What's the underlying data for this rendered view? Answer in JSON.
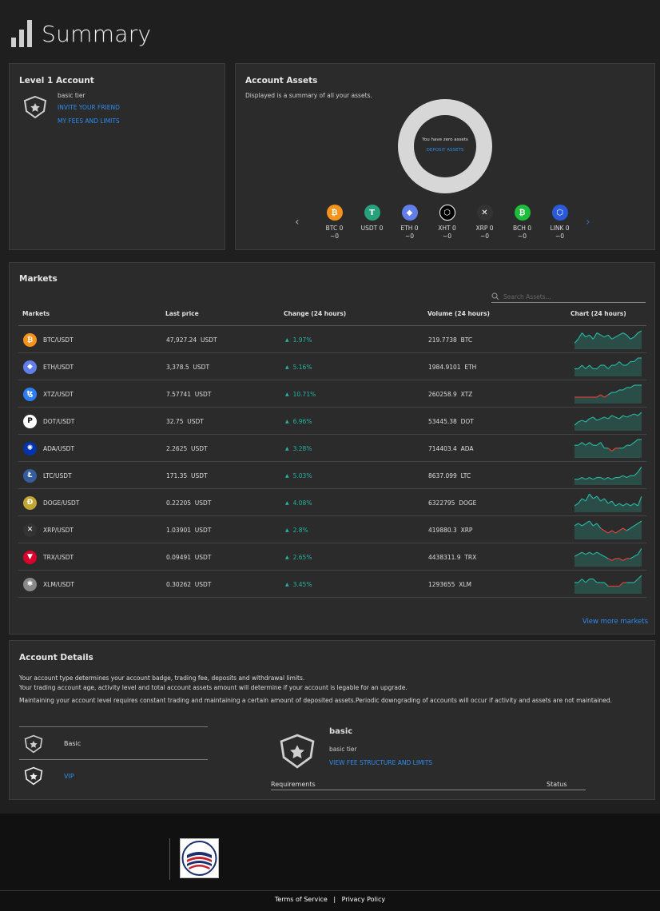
{
  "page_title": "Summary",
  "level_panel": {
    "title": "Level 1 Account",
    "tier": "basic tier",
    "invite_link": "INVITE YOUR FRIEND",
    "fees_link": "MY FEES AND LIMITS"
  },
  "assets_panel": {
    "title": "Account Assets",
    "subtitle": "Displayed is a summary of all your assets.",
    "zero_text": "You have zero assets",
    "deposit_link": "DEPOSIT ASSETS",
    "coins": [
      {
        "symbol": "BTC",
        "label": "BTC 0",
        "value": "~0",
        "color": "#f7931a",
        "glyph": "₿"
      },
      {
        "symbol": "USDT",
        "label": "USDT 0",
        "value": "",
        "color": "#26a17b",
        "glyph": "T"
      },
      {
        "symbol": "ETH",
        "label": "ETH 0",
        "value": "~0",
        "color": "#627eea",
        "glyph": "◆"
      },
      {
        "symbol": "XHT",
        "label": "XHT 0",
        "value": "~0",
        "color": "#000000",
        "glyph": "⬡"
      },
      {
        "symbol": "XRP",
        "label": "XRP 0",
        "value": "~0",
        "color": "#333333",
        "glyph": "✕"
      },
      {
        "symbol": "BCH",
        "label": "BCH 0",
        "value": "~0",
        "color": "#1dbd3c",
        "glyph": "₿"
      },
      {
        "symbol": "LINK",
        "label": "LINK 0",
        "value": "~0",
        "color": "#2a5ada",
        "glyph": "⬡"
      }
    ]
  },
  "markets": {
    "title": "Markets",
    "search_placeholder": "Search Assets...",
    "headers": [
      "Markets",
      "Last price",
      "Change (24 hours)",
      "Volume (24 hours)",
      "Chart (24 hours)"
    ],
    "view_more": "View more markets",
    "rows": [
      {
        "pair": "BTC/USDT",
        "price": "47,927.24",
        "quote": "USDT",
        "change": "1.97%",
        "volume": "219.7738",
        "base": "BTC",
        "color": "#f7931a",
        "glyph": "₿",
        "spark": [
          4,
          6,
          9,
          7,
          8,
          6,
          9,
          8,
          7,
          8,
          6,
          7,
          8,
          9,
          8,
          6,
          7,
          9,
          10
        ],
        "red": []
      },
      {
        "pair": "ETH/USDT",
        "price": "3,378.5",
        "quote": "USDT",
        "change": "5.16%",
        "volume": "1984.9101",
        "base": "ETH",
        "color": "#627eea",
        "glyph": "◆",
        "spark": [
          4,
          4,
          5,
          4,
          5,
          4,
          4,
          5,
          5,
          4,
          5,
          5,
          6,
          5,
          5,
          6,
          6,
          7,
          7
        ],
        "red": []
      },
      {
        "pair": "XTZ/USDT",
        "price": "7.57741",
        "quote": "USDT",
        "change": "10.71%",
        "volume": "260258.9",
        "base": "XTZ",
        "color": "#2c7df7",
        "glyph": "ꜩ",
        "spark": [
          3,
          3,
          3,
          3,
          3,
          3,
          3,
          4,
          3,
          4,
          5,
          5,
          6,
          6,
          7,
          7,
          8,
          8,
          8
        ],
        "red": [
          0,
          1,
          2,
          3,
          4,
          5,
          6,
          7,
          8
        ]
      },
      {
        "pair": "DOT/USDT",
        "price": "32.75",
        "quote": "USDT",
        "change": "6.96%",
        "volume": "53445.38",
        "base": "DOT",
        "color": "#ffffff",
        "glyph": "P",
        "spark": [
          3,
          5,
          6,
          5,
          7,
          8,
          6,
          7,
          8,
          7,
          9,
          8,
          7,
          9,
          8,
          9,
          10,
          9,
          11
        ],
        "red": []
      },
      {
        "pair": "ADA/USDT",
        "price": "2.2625",
        "quote": "USDT",
        "change": "3.28%",
        "volume": "714403.4",
        "base": "ADA",
        "color": "#0033ad",
        "glyph": "✺",
        "spark": [
          6,
          6,
          7,
          6,
          7,
          6,
          6,
          7,
          5,
          5,
          4,
          5,
          5,
          5,
          6,
          6,
          7,
          8,
          8
        ],
        "red": [
          9,
          10,
          11
        ]
      },
      {
        "pair": "LTC/USDT",
        "price": "171.35",
        "quote": "USDT",
        "change": "5.03%",
        "volume": "8637.099",
        "base": "LTC",
        "color": "#345d9d",
        "glyph": "Ł",
        "spark": [
          4,
          4,
          5,
          4,
          5,
          4,
          5,
          5,
          4,
          5,
          4,
          5,
          5,
          6,
          5,
          6,
          6,
          8,
          11
        ],
        "red": []
      },
      {
        "pair": "DOGE/USDT",
        "price": "0.22205",
        "quote": "USDT",
        "change": "4.08%",
        "volume": "6322795",
        "base": "DOGE",
        "color": "#c2a633",
        "glyph": "Ð",
        "spark": [
          5,
          6,
          8,
          7,
          10,
          8,
          9,
          7,
          8,
          6,
          7,
          5,
          6,
          5,
          6,
          5,
          6,
          5,
          9
        ],
        "red": []
      },
      {
        "pair": "XRP/USDT",
        "price": "1.03901",
        "quote": "USDT",
        "change": "2.8%",
        "volume": "419880.3",
        "base": "XRP",
        "color": "#333333",
        "glyph": "✕",
        "spark": [
          8,
          9,
          8,
          9,
          10,
          8,
          9,
          7,
          6,
          5,
          6,
          5,
          6,
          7,
          6,
          7,
          8,
          9,
          10
        ],
        "red": [
          7,
          8,
          9,
          10,
          11,
          12,
          13
        ]
      },
      {
        "pair": "TRX/USDT",
        "price": "0.09491",
        "quote": "USDT",
        "change": "2.65%",
        "volume": "4438311.9",
        "base": "TRX",
        "color": "#d9012c",
        "glyph": "▼",
        "spark": [
          7,
          8,
          9,
          8,
          9,
          8,
          9,
          8,
          7,
          6,
          5,
          6,
          6,
          5,
          6,
          6,
          7,
          8,
          11
        ],
        "red": [
          9,
          10,
          11,
          12,
          13,
          14
        ]
      },
      {
        "pair": "XLM/USDT",
        "price": "0.30262",
        "quote": "USDT",
        "change": "3.45%",
        "volume": "1293655",
        "base": "XLM",
        "color": "#888888",
        "glyph": "✱",
        "spark": [
          6,
          6,
          7,
          6,
          7,
          7,
          6,
          6,
          6,
          5,
          5,
          5,
          5,
          6,
          6,
          6,
          6,
          7,
          8
        ],
        "red": [
          9,
          10,
          11,
          12,
          13
        ]
      }
    ]
  },
  "account_details": {
    "title": "Account Details",
    "para1": "Your account type determines your account badge, trading fee, deposits and withdrawal limits.",
    "para2": "Your trading account age, activity level and total account assets amount will determine if your account is legable for an upgrade.",
    "para3": "Maintaining your account level requires constant trading and maintaining a certain amount of deposited assets.Periodic downgrading of accounts will occur if activity and assets are not maintained.",
    "levels": [
      "Basic",
      "VIP"
    ],
    "selected_name": "basic",
    "selected_tier": "basic tier",
    "fee_link": "VIEW FEE STRUCTURE AND LIMITS",
    "req_header": "Requirements",
    "status_header": "Status"
  },
  "footer": {
    "terms": "Terms of Service",
    "separator": "|",
    "privacy": "Privacy Policy"
  }
}
